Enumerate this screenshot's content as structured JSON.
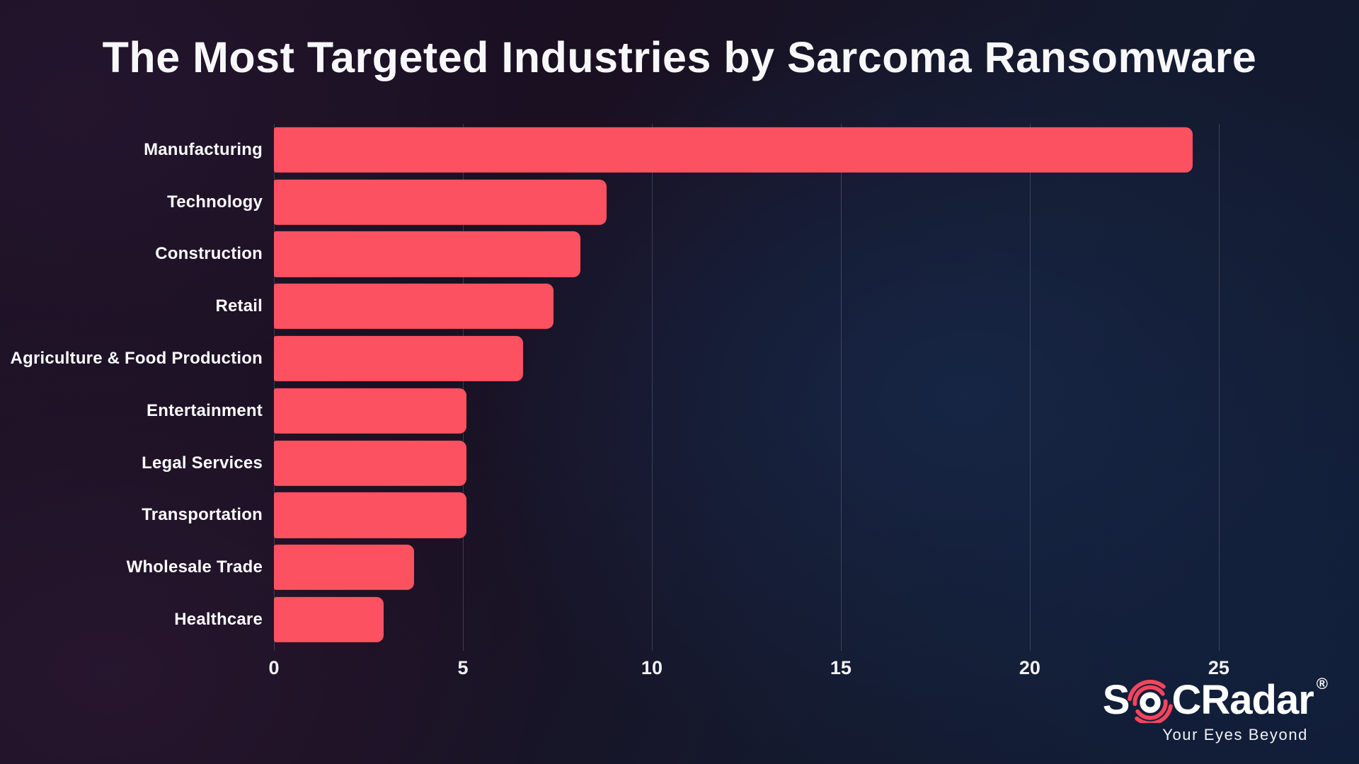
{
  "title": "The Most Targeted Industries by Sarcoma Ransomware",
  "chart_data": {
    "type": "bar",
    "orientation": "horizontal",
    "title": "The Most Targeted Industries by Sarcoma Ransomware",
    "categories": [
      "Manufacturing",
      "Technology",
      "Construction",
      "Retail",
      "Agriculture & Food Production",
      "Entertainment",
      "Legal Services",
      "Transportation",
      "Wholesale Trade",
      "Healthcare"
    ],
    "values": [
      24.3,
      8.8,
      8.1,
      7.4,
      6.6,
      5.1,
      5.1,
      5.1,
      3.7,
      2.9
    ],
    "xlabel": "",
    "ylabel": "",
    "xticks": [
      0,
      5,
      10,
      15,
      20,
      25
    ],
    "xlim": [
      0,
      26.5
    ],
    "grid": true,
    "legend": false,
    "bar_color": "#fb5160",
    "gridline_color": "rgba(255,255,255,0.17)"
  },
  "logo": {
    "brand_s": "S",
    "brand_o_icon": "radar-o",
    "brand_rest": "CRadar",
    "registered": "®",
    "tagline": "Your Eyes Beyond",
    "arc_color": "#f4455c",
    "text_color": "#ffffff"
  }
}
